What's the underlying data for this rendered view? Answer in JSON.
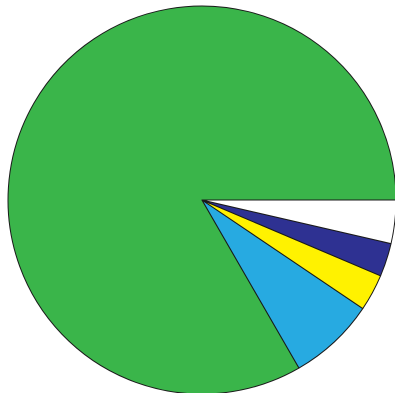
{
  "chart_data": {
    "type": "pie",
    "title": "",
    "legend": "none",
    "slices": [
      {
        "name": "",
        "value": 0.8333,
        "color": "#3ab54a"
      },
      {
        "name": "",
        "value": 0.0722,
        "color": "#27aae1"
      },
      {
        "name": "",
        "value": 0.0306,
        "color": "#fff200"
      },
      {
        "name": "",
        "value": 0.0278,
        "color": "#2e3192"
      },
      {
        "name": "",
        "value": 0.0361,
        "color": "#ffffff"
      }
    ]
  }
}
